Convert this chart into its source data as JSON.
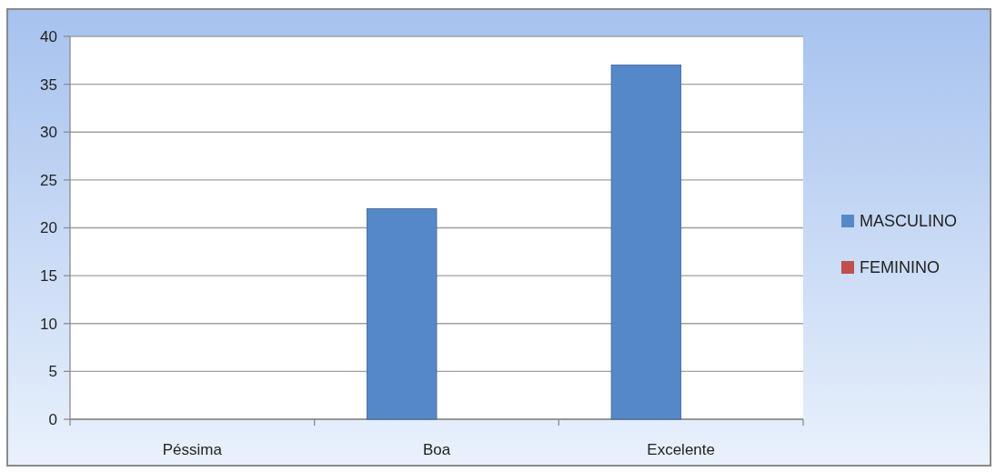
{
  "chart_data": {
    "type": "bar",
    "categories": [
      "Péssima",
      "Boa",
      "Excelente"
    ],
    "series": [
      {
        "name": "MASCULINO",
        "color": "#5588c8",
        "values": [
          0,
          22,
          37
        ]
      },
      {
        "name": "FEMININO",
        "color": "#c0504d",
        "values": [
          0,
          0,
          0
        ]
      }
    ],
    "ylim": [
      0,
      40
    ],
    "yticks": [
      0,
      5,
      10,
      15,
      20,
      25,
      30,
      35,
      40
    ],
    "grid": "y",
    "legend": "right"
  }
}
